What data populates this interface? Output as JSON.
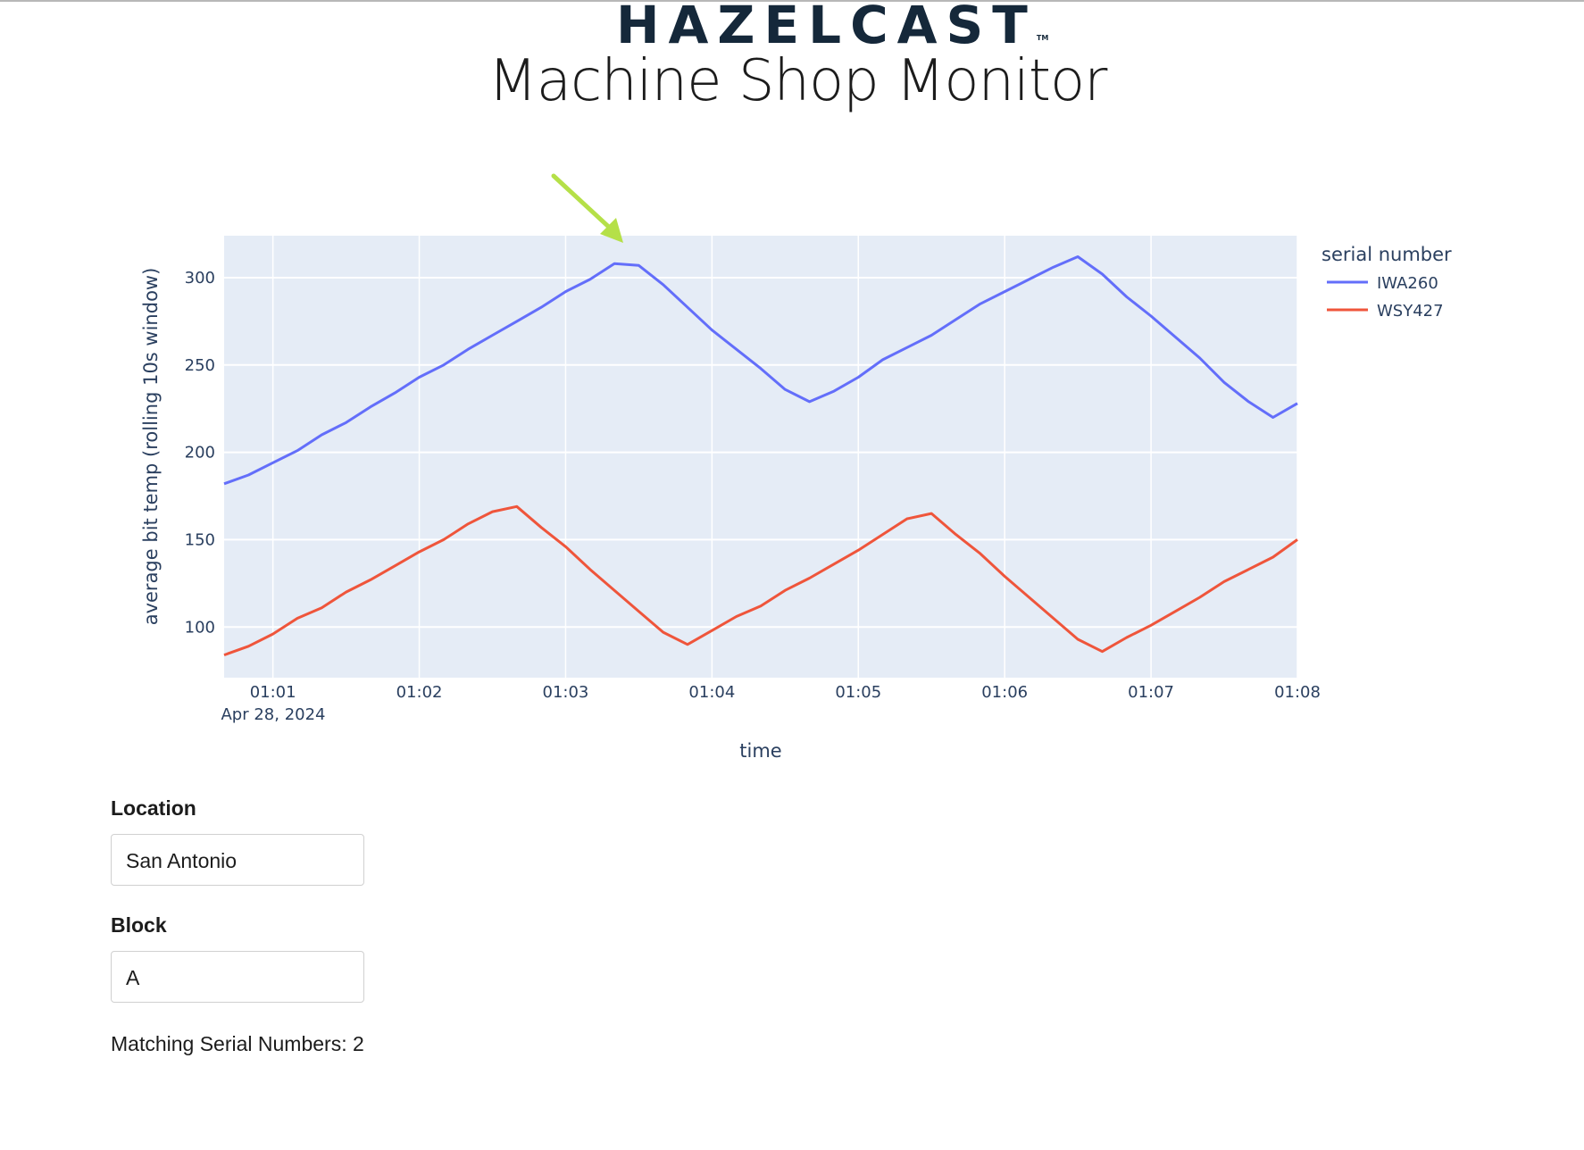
{
  "header": {
    "logo_text": "HAZELCAST",
    "logo_tm": "TM",
    "title": "Machine Shop Monitor"
  },
  "colors": {
    "plot_bg": "#e5ecf6",
    "IWA260": "#636efa",
    "WSY427": "#ef553b",
    "arrow": "#b5e048",
    "logo": "#15283a",
    "logo_accent": "#4aa8bb"
  },
  "annotation": {
    "icon": "green-arrow-icon"
  },
  "chart_data": {
    "type": "line",
    "xlabel": "time",
    "ylabel": "average bit temp (rolling 10s window)",
    "x_date_label": "Apr 28, 2024",
    "x_ticks": [
      "01:01",
      "01:02",
      "01:03",
      "01:04",
      "01:05",
      "01:06",
      "01:07",
      "01:08"
    ],
    "y_ticks": [
      100,
      150,
      200,
      250,
      300
    ],
    "xlim": [
      "01:00:40",
      "01:08:00"
    ],
    "ylim": [
      71,
      324
    ],
    "grid": true,
    "legend_title": "serial number",
    "legend_position": "top-right",
    "x": [
      "01:00:40",
      "01:00:50",
      "01:01:00",
      "01:01:10",
      "01:01:20",
      "01:01:30",
      "01:01:40",
      "01:01:50",
      "01:02:00",
      "01:02:10",
      "01:02:20",
      "01:02:30",
      "01:02:40",
      "01:02:50",
      "01:03:00",
      "01:03:10",
      "01:03:20",
      "01:03:30",
      "01:03:40",
      "01:03:50",
      "01:04:00",
      "01:04:10",
      "01:04:20",
      "01:04:30",
      "01:04:40",
      "01:04:50",
      "01:05:00",
      "01:05:10",
      "01:05:20",
      "01:05:30",
      "01:05:40",
      "01:05:50",
      "01:06:00",
      "01:06:10",
      "01:06:20",
      "01:06:30",
      "01:06:40",
      "01:06:50",
      "01:07:00",
      "01:07:10",
      "01:07:20",
      "01:07:30",
      "01:07:40",
      "01:07:50",
      "01:08:00"
    ],
    "series": [
      {
        "name": "IWA260",
        "values": [
          182,
          187,
          194,
          201,
          210,
          217,
          226,
          234,
          243,
          250,
          259,
          267,
          275,
          283,
          292,
          299,
          308,
          307,
          296,
          283,
          270,
          259,
          248,
          236,
          229,
          235,
          243,
          253,
          260,
          267,
          276,
          285,
          292,
          299,
          306,
          312,
          302,
          289,
          278,
          266,
          254,
          240,
          229,
          220,
          228
        ]
      },
      {
        "name": "WSY427",
        "values": [
          84,
          89,
          96,
          105,
          111,
          120,
          127,
          135,
          143,
          150,
          159,
          166,
          169,
          157,
          146,
          133,
          121,
          109,
          97,
          90,
          98,
          106,
          112,
          121,
          128,
          136,
          144,
          153,
          162,
          165,
          153,
          142,
          129,
          117,
          105,
          93,
          86,
          94,
          101,
          109,
          117,
          126,
          133,
          140,
          150
        ]
      }
    ]
  },
  "form": {
    "location_label": "Location",
    "location_value": "San Antonio",
    "block_label": "Block",
    "block_value": "A",
    "matching_text": "Matching Serial Numbers: 2"
  }
}
